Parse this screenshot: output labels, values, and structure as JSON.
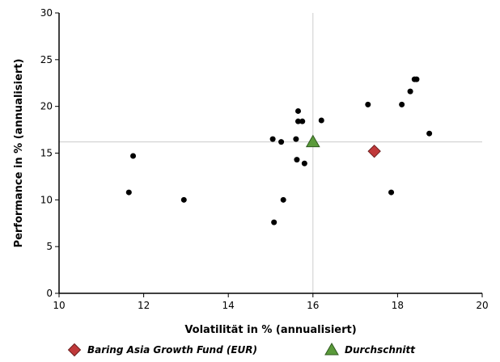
{
  "chart_data": {
    "type": "scatter",
    "xlabel": "Volatilität in % (annualisiert)",
    "ylabel": "Performance in % (annualisiert)",
    "xlim": [
      10,
      20
    ],
    "ylim": [
      0,
      30
    ],
    "xticks": [
      10,
      12,
      14,
      16,
      18,
      20
    ],
    "yticks": [
      0,
      5,
      10,
      15,
      20,
      25,
      30
    ],
    "grid": false,
    "reference_lines": {
      "x": 16.0,
      "y": 16.2,
      "color": "#cccccc"
    },
    "legend_position": "bottom",
    "series": [
      {
        "marker": "circle",
        "color": "#000000",
        "points": [
          {
            "x": 11.65,
            "y": 10.8
          },
          {
            "x": 11.75,
            "y": 14.7
          },
          {
            "x": 12.95,
            "y": 10.0
          },
          {
            "x": 15.05,
            "y": 16.5
          },
          {
            "x": 15.08,
            "y": 7.6
          },
          {
            "x": 15.25,
            "y": 16.2
          },
          {
            "x": 15.3,
            "y": 10.0
          },
          {
            "x": 15.6,
            "y": 16.5
          },
          {
            "x": 15.62,
            "y": 14.3
          },
          {
            "x": 15.65,
            "y": 18.4
          },
          {
            "x": 15.65,
            "y": 19.5
          },
          {
            "x": 15.75,
            "y": 18.4
          },
          {
            "x": 15.8,
            "y": 13.9
          },
          {
            "x": 16.2,
            "y": 18.5
          },
          {
            "x": 17.3,
            "y": 20.2
          },
          {
            "x": 17.85,
            "y": 10.8
          },
          {
            "x": 18.1,
            "y": 20.2
          },
          {
            "x": 18.3,
            "y": 21.6
          },
          {
            "x": 18.4,
            "y": 22.9
          },
          {
            "x": 18.45,
            "y": 22.9
          },
          {
            "x": 18.75,
            "y": 17.1
          }
        ]
      },
      {
        "name": "Baring Asia Growth Fund (EUR)",
        "marker": "diamond",
        "color": "#c0393a",
        "points": [
          {
            "x": 17.45,
            "y": 15.2
          }
        ]
      },
      {
        "name": "Durchschnitt",
        "marker": "triangle",
        "color": "#5a9a3a",
        "points": [
          {
            "x": 16.0,
            "y": 16.2
          }
        ]
      }
    ]
  }
}
